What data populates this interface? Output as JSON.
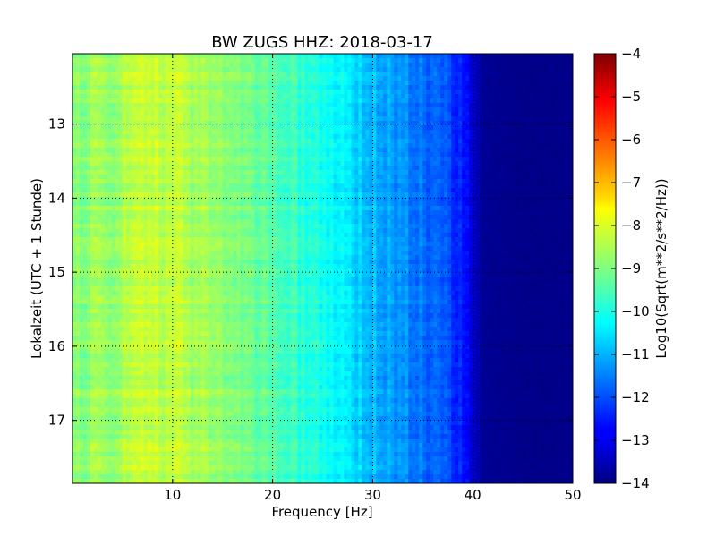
{
  "chart_data": {
    "type": "heatmap",
    "title": "BW ZUGS HHZ: 2018-03-17",
    "xlabel": "Frequency [Hz]",
    "ylabel": "Lokalzeit (UTC + 1 Stunde)",
    "xlim": [
      0,
      50
    ],
    "ylim": [
      12.05,
      17.85
    ],
    "y_inverted": true,
    "xticks": [
      10,
      20,
      30,
      40,
      50
    ],
    "yticks": [
      13,
      14,
      15,
      16,
      17
    ],
    "grid": true,
    "colorbar": {
      "label": "Log10(Sqrt(m**2/s**2/Hz))",
      "range": [
        -14,
        -4
      ],
      "ticks": [
        -4,
        -5,
        -6,
        -7,
        -8,
        -9,
        -10,
        -11,
        -12,
        -13,
        -14
      ],
      "colormap": "jet"
    },
    "spectral_profile": {
      "frequency_hz": [
        0,
        2,
        4,
        6,
        8,
        10,
        12,
        14,
        16,
        18,
        20,
        22,
        24,
        26,
        28,
        30,
        32,
        34,
        36,
        38,
        39,
        40,
        41,
        45,
        50
      ],
      "log10_amplitude": [
        -8.9,
        -8.8,
        -8.7,
        -8.4,
        -8.3,
        -8.4,
        -8.6,
        -8.8,
        -9.0,
        -9.2,
        -9.4,
        -9.7,
        -10.0,
        -10.3,
        -10.6,
        -10.9,
        -11.2,
        -11.5,
        -11.8,
        -12.2,
        -12.6,
        -13.2,
        -13.8,
        -13.9,
        -13.9
      ]
    },
    "colors": {
      "plot_border": "#000000",
      "grid": "#000000",
      "background": "#ffffff"
    }
  }
}
